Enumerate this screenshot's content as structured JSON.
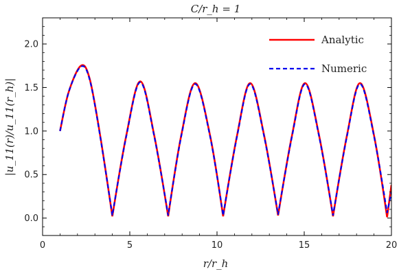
{
  "chart_data": {
    "type": "line",
    "title": "C/r_h = 1",
    "xlabel": "r/r_h",
    "ylabel": "|u_11(r)/u_11(r_h)|",
    "xlim": [
      0,
      20
    ],
    "ylim": [
      -0.2,
      2.3
    ],
    "xticks": [
      0,
      5,
      10,
      15,
      20
    ],
    "yticks": [
      0.0,
      0.5,
      1.0,
      1.5,
      2.0
    ],
    "ytick_labels": [
      "0.0",
      "0.5",
      "1.0",
      "1.5",
      "2.0"
    ],
    "grid": false,
    "legend_position": "top-right",
    "x": [
      1.0,
      1.5,
      2.2,
      2.7,
      3.3,
      4.0,
      4.8,
      5.6,
      6.4,
      7.2,
      7.95,
      8.75,
      9.6,
      10.35,
      11.15,
      11.9,
      12.7,
      13.5,
      14.3,
      15.05,
      15.85,
      16.65,
      17.45,
      18.2,
      19.0,
      19.75,
      20.0
    ],
    "series": [
      {
        "name": "Analytic",
        "color": "#ff0000",
        "style": "solid",
        "values": [
          1.0,
          1.45,
          1.75,
          1.6,
          0.95,
          0.02,
          0.95,
          1.57,
          0.95,
          0.02,
          0.95,
          1.55,
          0.95,
          0.02,
          0.95,
          1.55,
          0.95,
          0.03,
          0.95,
          1.55,
          0.95,
          0.02,
          0.95,
          1.55,
          0.95,
          0.01,
          0.38
        ]
      },
      {
        "name": "Numeric",
        "color": "#0000ee",
        "style": "dashed",
        "values": [
          1.0,
          1.45,
          1.74,
          1.59,
          0.94,
          0.03,
          0.94,
          1.56,
          0.94,
          0.03,
          0.94,
          1.54,
          0.94,
          0.03,
          0.94,
          1.54,
          0.94,
          0.04,
          0.94,
          1.54,
          0.94,
          0.03,
          0.94,
          1.54,
          0.94,
          0.06,
          0.3
        ]
      }
    ]
  }
}
